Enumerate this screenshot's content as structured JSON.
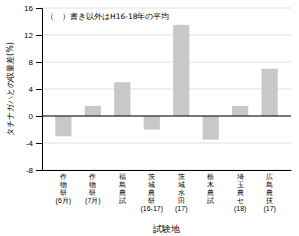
{
  "chart_data": {
    "type": "bar",
    "categories": [
      "作\n物\n研\n(6月)",
      "作\n物\n研\n(7月)",
      "福\n島\n農\n試",
      "茨\n城\n農\n研\n(16-17)",
      "茨\n城\n水\n田\n(17)",
      "栃\n木\n農\n試",
      "埼\n玉\n農\nセ\n(18)",
      "広\n島\n農\n技\n(17)"
    ],
    "values": [
      -3.0,
      1.5,
      5.0,
      -2.0,
      13.5,
      -3.5,
      1.5,
      7.0
    ],
    "color": "#c8c8c8",
    "ylabel": "タチナガハとの収量差(%)",
    "xlabel": "試験地",
    "annotation": "（　）書き以外はH16-18年の平均",
    "ylim": [
      -8,
      16
    ],
    "yticks": [
      -8,
      -4,
      0,
      4,
      8,
      12,
      16
    ],
    "grid": true
  }
}
